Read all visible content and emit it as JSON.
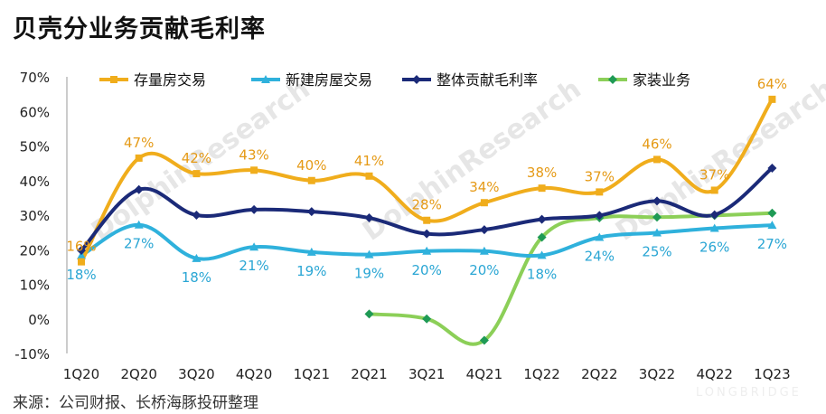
{
  "title": "贝壳分业务贡献毛利率",
  "source": "来源：公司财报、长桥海豚投研整理",
  "watermark": "DolphinResearch",
  "watermark_small": "LONGBRIDGE",
  "chart_data": {
    "type": "line",
    "categories": [
      "1Q20",
      "2Q20",
      "3Q20",
      "4Q20",
      "1Q21",
      "2Q21",
      "3Q21",
      "4Q21",
      "1Q22",
      "2Q22",
      "3Q22",
      "4Q22",
      "1Q23"
    ],
    "yticks": [
      "70%",
      "60%",
      "50%",
      "40%",
      "30%",
      "20%",
      "10%",
      "0%",
      "-10%"
    ],
    "ylim": [
      -10,
      70
    ],
    "legend_position": "top",
    "grid": false,
    "series": [
      {
        "name": "存量房交易",
        "color": "#f0ad1c",
        "marker": "square",
        "values": [
          16.5,
          46.5,
          42,
          43,
          40,
          41.3,
          28.5,
          33.6,
          37.8,
          36.7,
          46.1,
          37.2,
          63.5
        ],
        "labels": [
          "16%",
          "47%",
          "42%",
          "43%",
          "40%",
          "41%",
          "28%",
          "34%",
          "38%",
          "37%",
          "46%",
          "37%",
          "64%"
        ],
        "label_color": "#e59a16"
      },
      {
        "name": "新建房屋交易",
        "color": "#2fb1dc",
        "marker": "triangle",
        "values": [
          18.3,
          27.2,
          17.5,
          20.8,
          19.3,
          18.6,
          19.6,
          19.6,
          18.4,
          23.6,
          24.9,
          26.2,
          27.1
        ],
        "labels": [
          "18%",
          "27%",
          "18%",
          "21%",
          "19%",
          "19%",
          "20%",
          "20%",
          "18%",
          "24%",
          "25%",
          "26%",
          "27%"
        ],
        "label_color": "#2aa6d4"
      },
      {
        "name": "整体贡献毛利率",
        "color": "#1b2a78",
        "marker": "diamond",
        "values": [
          19.8,
          37.4,
          30,
          31.6,
          31,
          29.2,
          24.6,
          25.8,
          28.8,
          29.9,
          34.1,
          30.1,
          43.6
        ]
      },
      {
        "name": "家装业务",
        "color": "#8ccf58",
        "marker": "diamond",
        "marker_color": "#1f9a55",
        "values": [
          null,
          null,
          null,
          null,
          null,
          1.4,
          0,
          -6.2,
          23.6,
          29.2,
          29.4,
          29.9,
          30.6
        ]
      }
    ]
  }
}
